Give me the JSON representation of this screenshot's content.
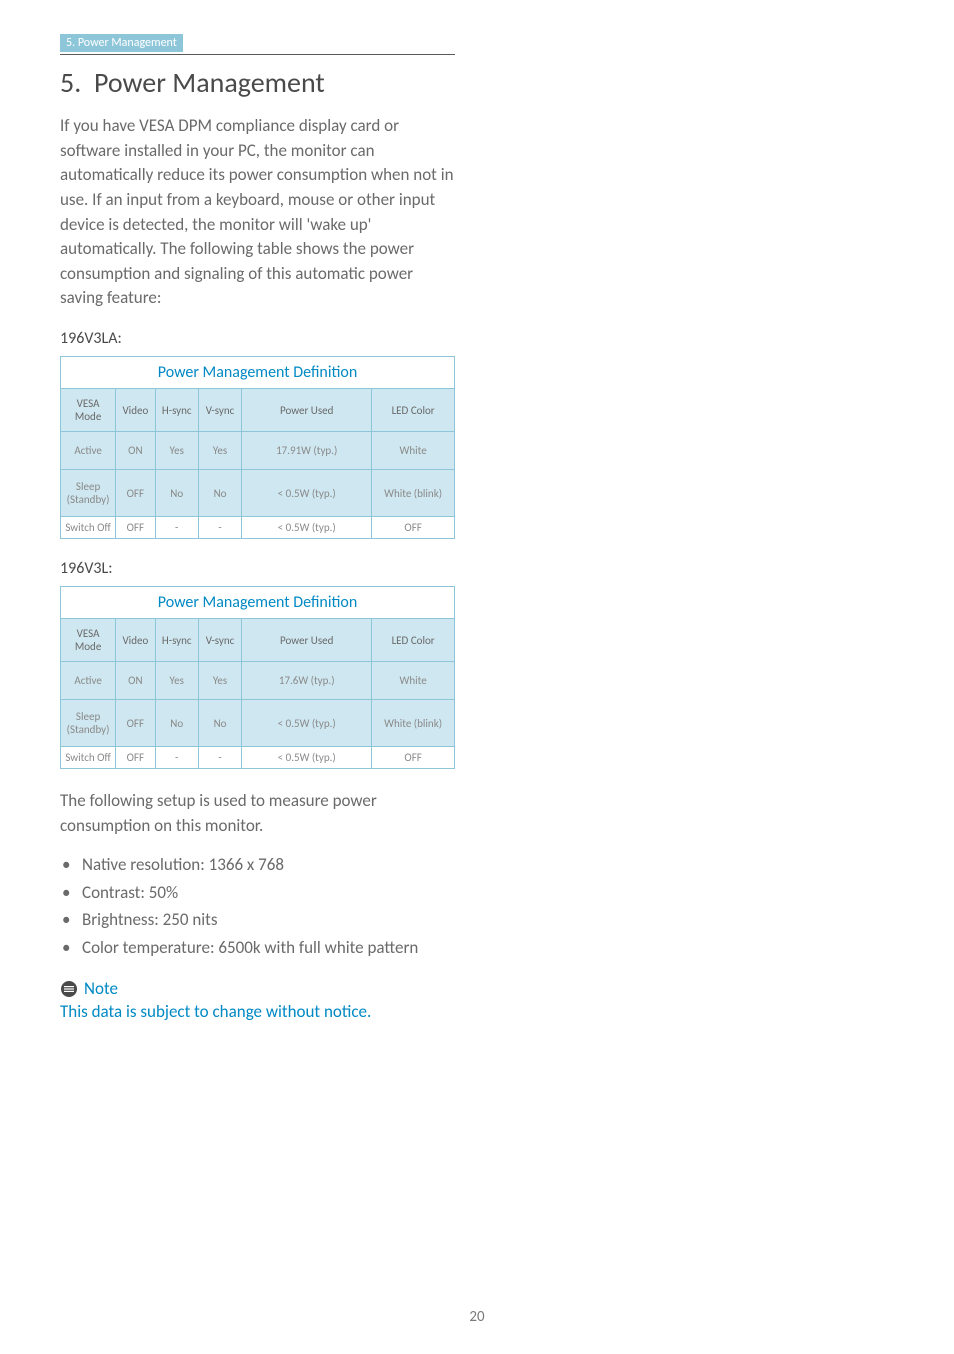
{
  "breadcrumb": "5. Power Management",
  "section_number": "5.",
  "section_title": "Power Management",
  "intro": "If you have VESA DPM compliance display card or software installed in your PC, the monitor can automatically reduce its power consumption when not in use. If an input from a keyboard, mouse or other input device is detected, the monitor will 'wake up' automatically. The following table shows the power consumption and signaling of this automatic power saving feature:",
  "table_title": "Power Management Definition",
  "columns": {
    "mode": "VESA Mode",
    "video": "Video",
    "hsync": "H-sync",
    "vsync": "V-sync",
    "power": "Power Used",
    "led": "LED Color"
  },
  "models": [
    {
      "label": "196V3LA:",
      "rows": [
        {
          "mode": "Active",
          "video": "ON",
          "hsync": "Yes",
          "vsync": "Yes",
          "power": "17.91W (typ.)",
          "led": "White",
          "shade": true,
          "tall": true
        },
        {
          "mode": "Sleep (Standby)",
          "video": "OFF",
          "hsync": "No",
          "vsync": "No",
          "power": "< 0.5W (typ.)",
          "led": "White (blink)",
          "shade": true,
          "med": true
        },
        {
          "mode": "Switch Off",
          "video": "OFF",
          "hsync": "-",
          "vsync": "-",
          "power": "< 0.5W (typ.)",
          "led": "OFF",
          "shade": false
        }
      ]
    },
    {
      "label": "196V3L:",
      "rows": [
        {
          "mode": "Active",
          "video": "ON",
          "hsync": "Yes",
          "vsync": "Yes",
          "power": "17.6W (typ.)",
          "led": "White",
          "shade": true,
          "tall": true
        },
        {
          "mode": "Sleep (Standby)",
          "video": "OFF",
          "hsync": "No",
          "vsync": "No",
          "power": "< 0.5W (typ.)",
          "led": "White (blink)",
          "shade": true,
          "med": true
        },
        {
          "mode": "Switch Off",
          "video": "OFF",
          "hsync": "-",
          "vsync": "-",
          "power": "< 0.5W (typ.)",
          "led": "OFF",
          "shade": false
        }
      ]
    }
  ],
  "followup": "The following setup is used to measure power consumption on this monitor.",
  "bullets": [
    "Native resolution: 1366 x 768",
    "Contrast: 50%",
    "Brightness: 250 nits",
    "Color temperature: 6500k with full white pattern"
  ],
  "note_label": "Note",
  "note_text": "This data is subject to change without notice.",
  "page_number": "20",
  "colors": {
    "accent_blue": "#0089c4",
    "light_blue_bg": "#cfe7f0",
    "border_blue": "#8ec6d9",
    "text_grey": "#6a6a6a"
  }
}
